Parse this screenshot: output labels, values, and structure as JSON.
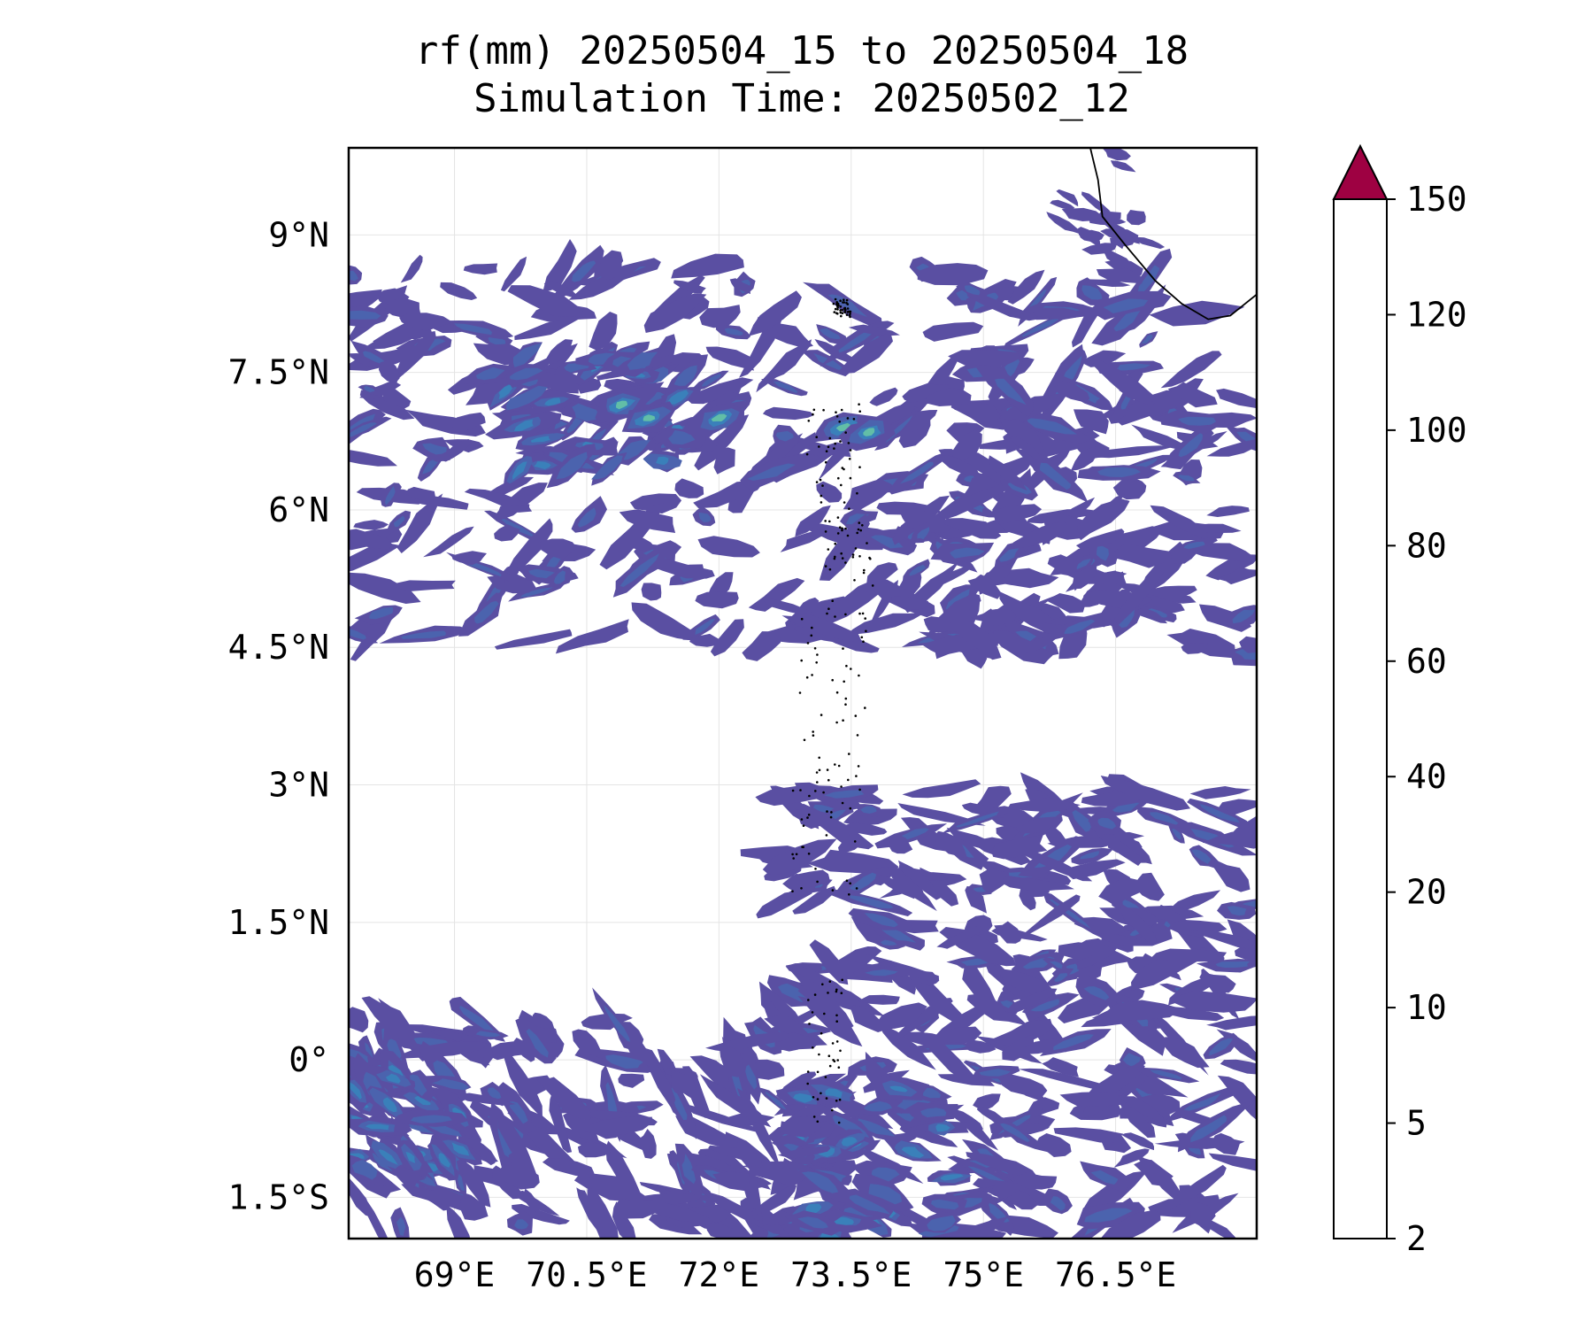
{
  "title": {
    "line1": "rf(mm) 20250504_15 to 20250504_18",
    "line2": "Simulation Time: 20250502_12"
  },
  "map": {
    "lon_range": [
      67.8,
      78.1
    ],
    "lat_range": [
      -1.95,
      9.95
    ],
    "x_ticks": [
      {
        "value": 69.0,
        "label": "69°E"
      },
      {
        "value": 70.5,
        "label": "70.5°E"
      },
      {
        "value": 72.0,
        "label": "72°E"
      },
      {
        "value": 73.5,
        "label": "73.5°E"
      },
      {
        "value": 75.0,
        "label": "75°E"
      },
      {
        "value": 76.5,
        "label": "76.5°E"
      }
    ],
    "y_ticks": [
      {
        "value": 9.0,
        "label": "9°N"
      },
      {
        "value": 7.5,
        "label": "7.5°N"
      },
      {
        "value": 6.0,
        "label": "6°N"
      },
      {
        "value": 4.5,
        "label": "4.5°N"
      },
      {
        "value": 3.0,
        "label": "3°N"
      },
      {
        "value": 1.5,
        "label": "1.5°N"
      },
      {
        "value": 0.0,
        "label": "0°"
      },
      {
        "value": -1.5,
        "label": "1.5°S"
      }
    ],
    "grid": true
  },
  "colorbar": {
    "levels": [
      {
        "value": 2,
        "label": "2"
      },
      {
        "value": 5,
        "label": "5"
      },
      {
        "value": 10,
        "label": "10"
      },
      {
        "value": 20,
        "label": "20"
      },
      {
        "value": 40,
        "label": "40"
      },
      {
        "value": 60,
        "label": "60"
      },
      {
        "value": 80,
        "label": "80"
      },
      {
        "value": 100,
        "label": "100"
      },
      {
        "value": 120,
        "label": "120"
      },
      {
        "value": 150,
        "label": "150"
      }
    ],
    "colors": [
      "#5a4fa2",
      "#4b63ae",
      "#3a80ba",
      "#62bea7",
      "#bce3a0",
      "#f3f9b0",
      "#fbe08a",
      "#f99b5a",
      "#d53e4f"
    ],
    "extend_color": "#9e0142",
    "extend": "max",
    "placement": "right"
  },
  "colors": {
    "rain_light": "#5a4fa2",
    "rain_mid": "#4b63ae",
    "rain_heavy": "#3a80ba",
    "rain_peak": "#62bea7",
    "coastline": "#000000"
  }
}
